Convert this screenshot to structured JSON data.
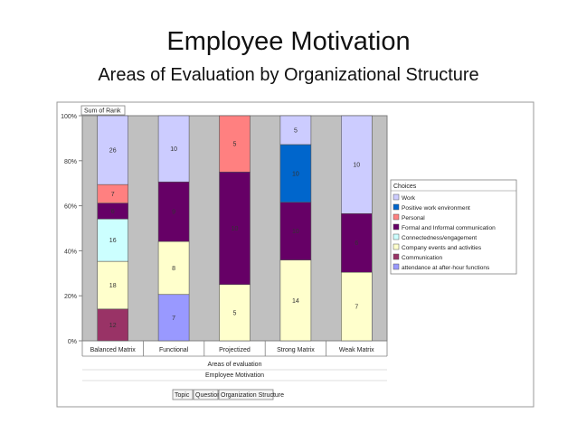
{
  "slide": {
    "title": "Employee Motivation",
    "subtitle": "Areas of Evaluation by Organizational Structure"
  },
  "chart_data": {
    "type": "bar",
    "stacked": "percent",
    "data_field": "Sum of Rank",
    "categories": [
      "Balanced Matrix",
      "Functional",
      "Projectized",
      "Strong Matrix",
      "Weak Matrix"
    ],
    "y_ticks": [
      "0%",
      "20%",
      "40%",
      "60%",
      "80%",
      "100%"
    ],
    "ylim": [
      0,
      100
    ],
    "grid": false,
    "axis_labels": [
      "Areas of evaluation",
      "Employee Motivation"
    ],
    "page_fields": [
      "Topic",
      "Question",
      "Organization Structure"
    ],
    "legend": {
      "title": "Choices",
      "placement": "right"
    },
    "series": [
      {
        "name": "attendance at after-hour functions",
        "color": "#9999ff",
        "values": [
          0,
          7,
          0,
          0,
          0
        ]
      },
      {
        "name": "Communication",
        "color": "#993366",
        "values": [
          12,
          0,
          0,
          0,
          0
        ]
      },
      {
        "name": "Company events and activities",
        "color": "#ffffcc",
        "values": [
          18,
          8,
          5,
          14,
          7
        ]
      },
      {
        "name": "Connectedness/engagement",
        "color": "#ccffff",
        "values": [
          16,
          0,
          0,
          0,
          0
        ]
      },
      {
        "name": "Formal and Informal communication",
        "color": "#660066",
        "values": [
          6,
          9,
          10,
          10,
          6
        ]
      },
      {
        "name": "Personal",
        "color": "#ff8080",
        "values": [
          7,
          0,
          5,
          0,
          0
        ]
      },
      {
        "name": "Positive work environment",
        "color": "#0066cc",
        "values": [
          0,
          0,
          0,
          10,
          0
        ]
      },
      {
        "name": "Work",
        "color": "#ccccff",
        "values": [
          26,
          10,
          0,
          5,
          10
        ]
      }
    ]
  }
}
